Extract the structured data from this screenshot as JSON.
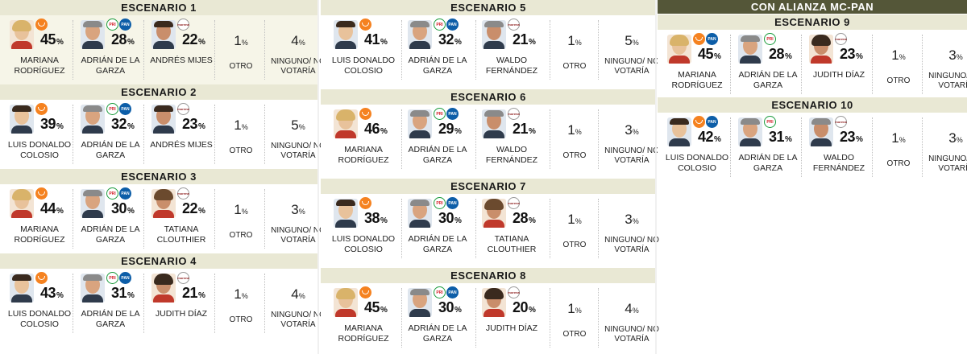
{
  "alliance_banner": "CON ALIANZA MC-PAN",
  "labels": {
    "other": "OTRO",
    "none": "NINGUNO/ NO VOTARÍA",
    "pct_symbol": "%"
  },
  "colors": {
    "header_bg": "#e9e8d4",
    "banner_bg": "#545638",
    "mc": "#f58220",
    "pri": "#1a9b3c",
    "pan": "#0d5ea8",
    "morena": "#8b1a1a"
  },
  "chart_data": {
    "type": "table",
    "columns": [
      "candidate_1",
      "candidate_2",
      "candidate_3",
      "otro",
      "ninguno_no_votaria"
    ],
    "scenarios": [
      {
        "title": "ESCENARIO 1",
        "candidates": [
          {
            "name": "MARIANA RODRÍGUEZ",
            "value": 45,
            "party_icons": [
              "mc-logo"
            ]
          },
          {
            "name": "ADRIÁN DE LA GARZA",
            "value": 28,
            "party_icons": [
              "pri-logo",
              "pan-logo"
            ]
          },
          {
            "name": "ANDRÉS MIJES",
            "value": 22,
            "party_icons": [
              "morena-logo"
            ]
          }
        ],
        "other": 1,
        "none": 4
      },
      {
        "title": "ESCENARIO 2",
        "candidates": [
          {
            "name": "LUIS DONALDO COLOSIO",
            "value": 39,
            "party_icons": [
              "mc-logo"
            ]
          },
          {
            "name": "ADRIÁN DE LA GARZA",
            "value": 32,
            "party_icons": [
              "pri-logo",
              "pan-logo"
            ]
          },
          {
            "name": "ANDRÉS MIJES",
            "value": 23,
            "party_icons": [
              "morena-logo"
            ]
          }
        ],
        "other": 1,
        "none": 5
      },
      {
        "title": "ESCENARIO 3",
        "candidates": [
          {
            "name": "MARIANA RODRÍGUEZ",
            "value": 44,
            "party_icons": [
              "mc-logo"
            ]
          },
          {
            "name": "ADRIÁN DE LA GARZA",
            "value": 30,
            "party_icons": [
              "pri-logo",
              "pan-logo"
            ]
          },
          {
            "name": "TATIANA CLOUTHIER",
            "value": 22,
            "party_icons": [
              "morena-logo"
            ]
          }
        ],
        "other": 1,
        "none": 3
      },
      {
        "title": "ESCENARIO 4",
        "candidates": [
          {
            "name": "LUIS DONALDO COLOSIO",
            "value": 43,
            "party_icons": [
              "mc-logo"
            ]
          },
          {
            "name": "ADRIÁN DE LA GARZA",
            "value": 31,
            "party_icons": [
              "pri-logo",
              "pan-logo"
            ]
          },
          {
            "name": "JUDITH DÍAZ",
            "value": 21,
            "party_icons": [
              "morena-logo"
            ]
          }
        ],
        "other": 1,
        "none": 4
      },
      {
        "title": "ESCENARIO 5",
        "candidates": [
          {
            "name": "LUIS DONALDO COLOSIO",
            "value": 41,
            "party_icons": [
              "mc-logo"
            ]
          },
          {
            "name": "ADRIÁN DE LA GARZA",
            "value": 32,
            "party_icons": [
              "pri-logo",
              "pan-logo"
            ]
          },
          {
            "name": "WALDO FERNÁNDEZ",
            "value": 21,
            "party_icons": [
              "morena-logo"
            ]
          }
        ],
        "other": 1,
        "none": 5
      },
      {
        "title": "ESCENARIO 6",
        "candidates": [
          {
            "name": "MARIANA RODRÍGUEZ",
            "value": 46,
            "party_icons": [
              "mc-logo"
            ]
          },
          {
            "name": "ADRIÁN DE LA GARZA",
            "value": 29,
            "party_icons": [
              "pri-logo",
              "pan-logo"
            ]
          },
          {
            "name": "WALDO FERNÁNDEZ",
            "value": 21,
            "party_icons": [
              "morena-logo"
            ]
          }
        ],
        "other": 1,
        "none": 3
      },
      {
        "title": "ESCENARIO 7",
        "candidates": [
          {
            "name": "LUIS DONALDO COLOSIO",
            "value": 38,
            "party_icons": [
              "mc-logo"
            ]
          },
          {
            "name": "ADRIÁN DE LA GARZA",
            "value": 30,
            "party_icons": [
              "pri-logo",
              "pan-logo"
            ]
          },
          {
            "name": "TATIANA CLOUTHIER",
            "value": 28,
            "party_icons": [
              "morena-logo"
            ]
          }
        ],
        "other": 1,
        "none": 3
      },
      {
        "title": "ESCENARIO 8",
        "candidates": [
          {
            "name": "MARIANA RODRÍGUEZ",
            "value": 45,
            "party_icons": [
              "mc-logo"
            ]
          },
          {
            "name": "ADRIÁN DE LA GARZA",
            "value": 30,
            "party_icons": [
              "pri-logo",
              "pan-logo"
            ]
          },
          {
            "name": "JUDITH DÍAZ",
            "value": 20,
            "party_icons": [
              "morena-logo"
            ]
          }
        ],
        "other": 1,
        "none": 4
      },
      {
        "title": "ESCENARIO 9",
        "candidates": [
          {
            "name": "MARIANA RODRÍGUEZ",
            "value": 45,
            "party_icons": [
              "mc-logo",
              "pan-logo"
            ]
          },
          {
            "name": "ADRIÁN DE LA GARZA",
            "value": 28,
            "party_icons": [
              "pri-logo"
            ]
          },
          {
            "name": "JUDITH DÍAZ",
            "value": 23,
            "party_icons": [
              "morena-logo"
            ]
          }
        ],
        "other": 1,
        "none": 3
      },
      {
        "title": "ESCENARIO 10",
        "candidates": [
          {
            "name": "LUIS DONALDO COLOSIO",
            "value": 42,
            "party_icons": [
              "mc-logo",
              "pan-logo"
            ]
          },
          {
            "name": "ADRIÁN DE LA GARZA",
            "value": 31,
            "party_icons": [
              "pri-logo"
            ]
          },
          {
            "name": "WALDO FERNÁNDEZ",
            "value": 23,
            "party_icons": [
              "morena-logo"
            ]
          }
        ],
        "other": 1,
        "none": 3
      }
    ]
  }
}
